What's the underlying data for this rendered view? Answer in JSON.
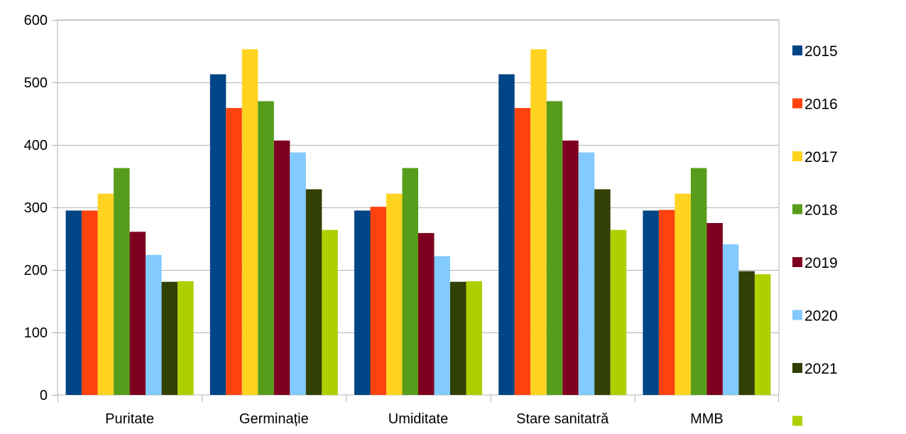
{
  "chart_data": {
    "type": "bar",
    "title": "",
    "xlabel": "",
    "ylabel": "",
    "ylim": [
      0,
      600
    ],
    "yticks": [
      0,
      100,
      200,
      300,
      400,
      500,
      600
    ],
    "grid": true,
    "legend_position": "right",
    "categories": [
      "Puritate",
      "Germinație",
      "Umiditate",
      "Stare sanitatră",
      "MMB"
    ],
    "series": [
      {
        "name": "2015",
        "color": "#004586",
        "values": [
          295,
          513,
          295,
          513,
          295
        ]
      },
      {
        "name": "2016",
        "color": "#ff420e",
        "values": [
          295,
          459,
          301,
          459,
          296
        ]
      },
      {
        "name": "2017",
        "color": "#ffd320",
        "values": [
          322,
          553,
          322,
          553,
          322
        ]
      },
      {
        "name": "2018",
        "color": "#579d1c",
        "values": [
          363,
          470,
          363,
          470,
          363
        ]
      },
      {
        "name": "2019",
        "color": "#7e0021",
        "values": [
          261,
          407,
          259,
          407,
          275
        ]
      },
      {
        "name": "2020",
        "color": "#83caff",
        "values": [
          224,
          388,
          222,
          388,
          241
        ]
      },
      {
        "name": "2021",
        "color": "#314004",
        "values": [
          181,
          329,
          181,
          329,
          198
        ]
      },
      {
        "name": "",
        "color": "#aecf00",
        "values": [
          182,
          264,
          182,
          264,
          193
        ]
      }
    ]
  }
}
